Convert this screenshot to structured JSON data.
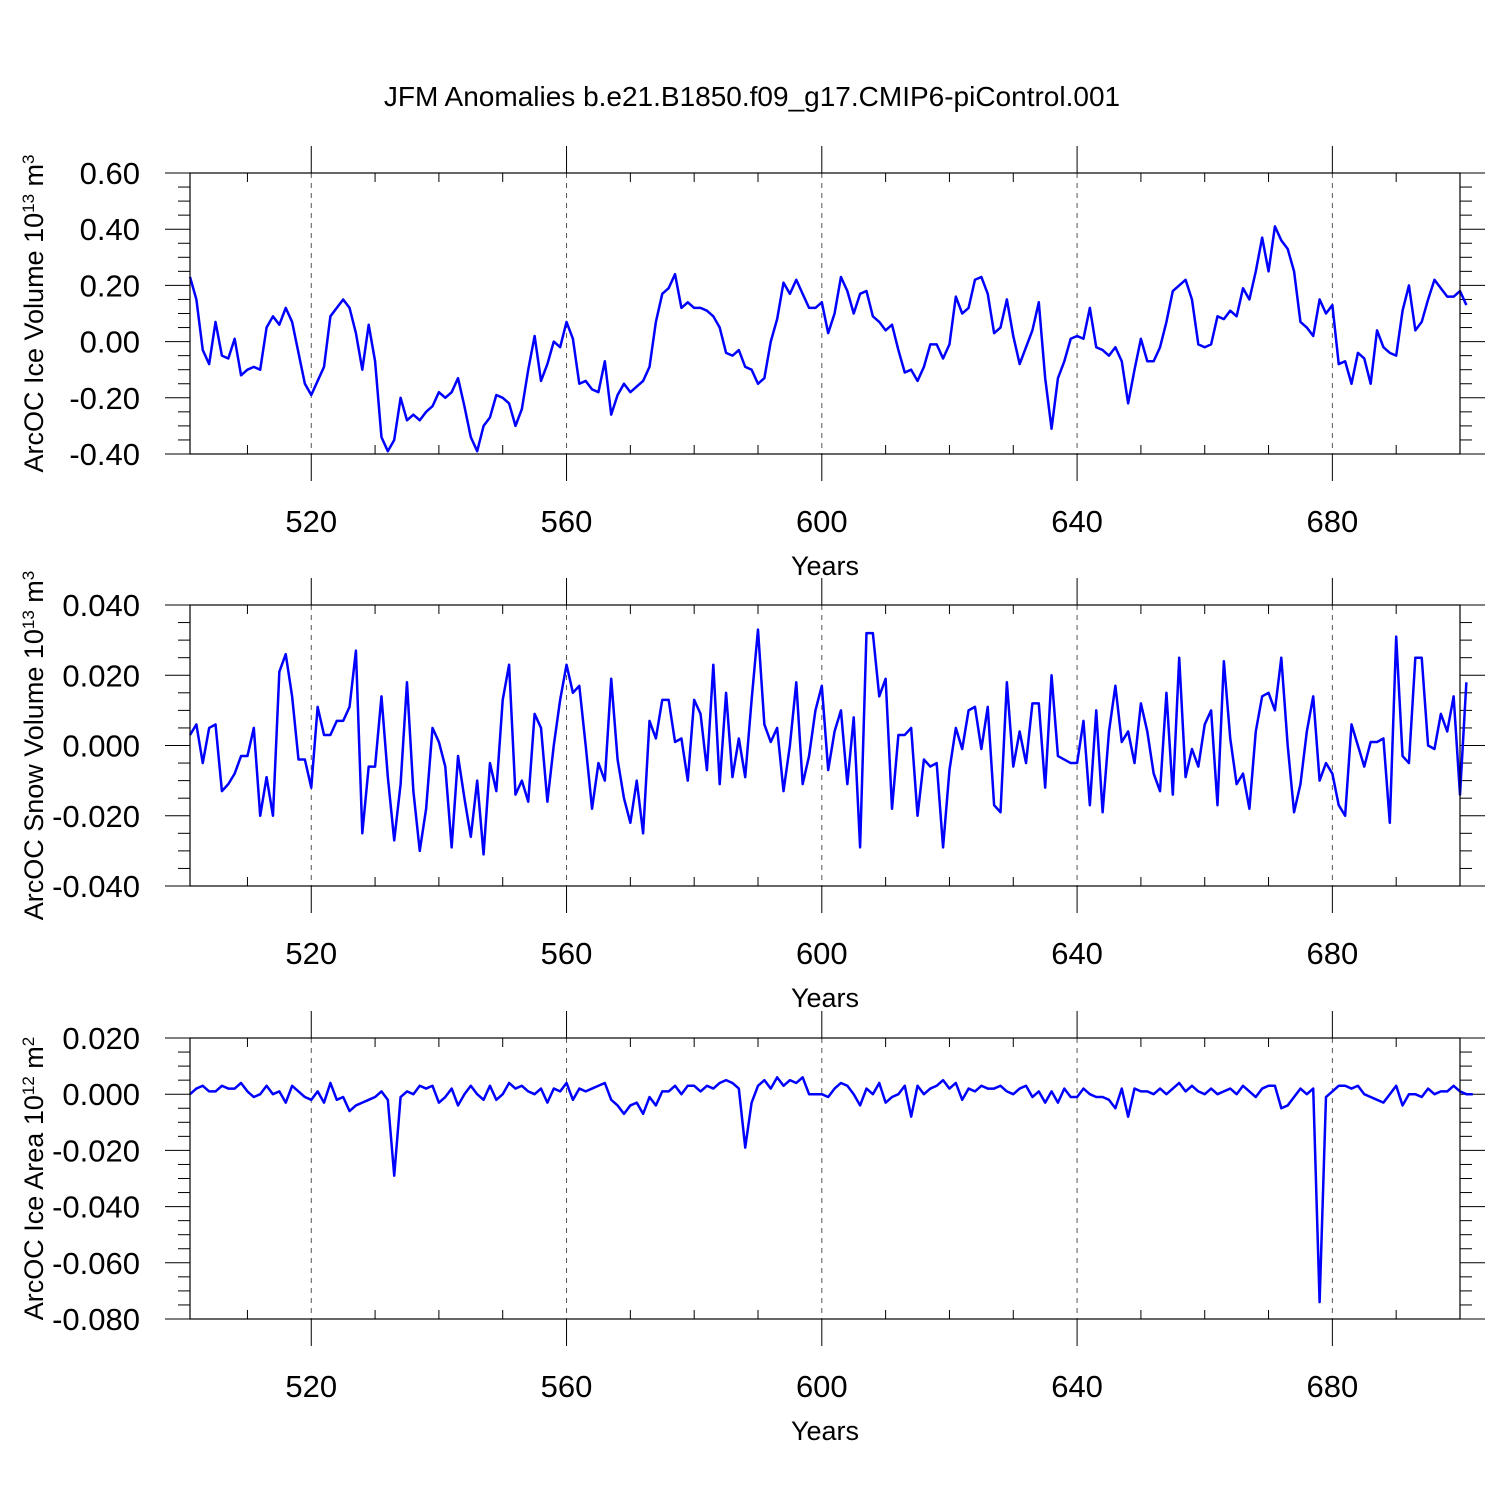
{
  "title": "JFM Anomalies b.e21.B1850.f09_g17.CMIP6-piControl.001",
  "line_color": "#0000ff",
  "chart_data": [
    {
      "type": "line",
      "ylabel_main": "ArcOC Ice Volume 10",
      "ylabel_exp": "13",
      "ylabel_unit": " m",
      "ylabel_unit_exp": "3",
      "xlabel": "Years",
      "xlim": [
        501,
        700
      ],
      "ylim": [
        -0.4,
        0.6
      ],
      "yticks": [
        -0.4,
        -0.2,
        0.0,
        0.2,
        0.4,
        0.6
      ],
      "ytick_labels": [
        "-0.40",
        "-0.20",
        "0.00",
        "0.20",
        "0.40",
        "0.60"
      ],
      "ytick_minor_step": 0.05,
      "xticks": [
        520,
        560,
        600,
        640,
        680
      ],
      "xtick_labels": [
        "520",
        "560",
        "600",
        "640",
        "680"
      ],
      "xtick_minor_step": 10,
      "grid": "vertical dashed at major x ticks",
      "x_start": 501,
      "x_step": 1,
      "values": [
        0.23,
        0.15,
        -0.03,
        -0.08,
        0.07,
        -0.05,
        -0.06,
        0.01,
        -0.12,
        -0.1,
        -0.09,
        -0.1,
        0.05,
        0.09,
        0.06,
        0.12,
        0.07,
        -0.04,
        -0.15,
        -0.19,
        -0.14,
        -0.09,
        0.09,
        0.12,
        0.15,
        0.12,
        0.03,
        -0.1,
        0.06,
        -0.07,
        -0.34,
        -0.39,
        -0.35,
        -0.2,
        -0.28,
        -0.26,
        -0.28,
        -0.25,
        -0.23,
        -0.18,
        -0.2,
        -0.18,
        -0.13,
        -0.23,
        -0.34,
        -0.39,
        -0.3,
        -0.27,
        -0.19,
        -0.2,
        -0.22,
        -0.3,
        -0.24,
        -0.1,
        0.02,
        -0.14,
        -0.08,
        0.0,
        -0.02,
        0.07,
        0.01,
        -0.15,
        -0.14,
        -0.17,
        -0.18,
        -0.07,
        -0.26,
        -0.19,
        -0.15,
        -0.18,
        -0.16,
        -0.14,
        -0.09,
        0.07,
        0.17,
        0.19,
        0.24,
        0.12,
        0.14,
        0.12,
        0.12,
        0.11,
        0.09,
        0.05,
        -0.04,
        -0.05,
        -0.03,
        -0.09,
        -0.1,
        -0.15,
        -0.13,
        0.0,
        0.08,
        0.21,
        0.17,
        0.22,
        0.17,
        0.12,
        0.12,
        0.14,
        0.03,
        0.1,
        0.23,
        0.18,
        0.1,
        0.17,
        0.18,
        0.09,
        0.07,
        0.04,
        0.06,
        -0.03,
        -0.11,
        -0.1,
        -0.14,
        -0.09,
        -0.01,
        -0.01,
        -0.06,
        -0.01,
        0.16,
        0.1,
        0.12,
        0.22,
        0.23,
        0.17,
        0.03,
        0.05,
        0.15,
        0.02,
        -0.08,
        -0.02,
        0.04,
        0.14,
        -0.13,
        -0.31,
        -0.13,
        -0.07,
        0.01,
        0.02,
        0.01,
        0.12,
        -0.02,
        -0.03,
        -0.05,
        -0.02,
        -0.07,
        -0.22,
        -0.1,
        0.01,
        -0.07,
        -0.07,
        -0.02,
        0.07,
        0.18,
        0.2,
        0.22,
        0.15,
        -0.01,
        -0.02,
        -0.01,
        0.09,
        0.08,
        0.11,
        0.09,
        0.19,
        0.15,
        0.25,
        0.37,
        0.25,
        0.41,
        0.36,
        0.33,
        0.25,
        0.07,
        0.05,
        0.02,
        0.15,
        0.1,
        0.13,
        -0.08,
        -0.07,
        -0.15,
        -0.04,
        -0.06,
        -0.15,
        0.04,
        -0.02,
        -0.04,
        -0.05,
        0.11,
        0.2,
        0.04,
        0.07,
        0.15,
        0.22,
        0.19,
        0.16,
        0.16,
        0.18,
        0.13
      ]
    },
    {
      "type": "line",
      "ylabel_main": "ArcOC Snow Volume 10",
      "ylabel_exp": "13",
      "ylabel_unit": " m",
      "ylabel_unit_exp": "3",
      "xlabel": "Years",
      "xlim": [
        501,
        700
      ],
      "ylim": [
        -0.04,
        0.04
      ],
      "yticks": [
        -0.04,
        -0.02,
        0.0,
        0.02,
        0.04
      ],
      "ytick_labels": [
        "-0.040",
        "-0.020",
        "0.000",
        "0.020",
        "0.040"
      ],
      "ytick_minor_step": 0.005,
      "xticks": [
        520,
        560,
        600,
        640,
        680
      ],
      "xtick_labels": [
        "520",
        "560",
        "600",
        "640",
        "680"
      ],
      "xtick_minor_step": 10,
      "grid": "vertical dashed at major x ticks",
      "x_start": 501,
      "x_step": 1,
      "values": [
        0.003,
        0.006,
        -0.005,
        0.005,
        0.006,
        -0.013,
        -0.011,
        -0.008,
        -0.003,
        -0.003,
        0.005,
        -0.02,
        -0.009,
        -0.02,
        0.021,
        0.026,
        0.014,
        -0.004,
        -0.004,
        -0.012,
        0.011,
        0.003,
        0.003,
        0.007,
        0.007,
        0.011,
        0.027,
        -0.025,
        -0.006,
        -0.006,
        0.014,
        -0.009,
        -0.027,
        -0.011,
        0.018,
        -0.013,
        -0.03,
        -0.018,
        0.005,
        0.001,
        -0.006,
        -0.029,
        -0.003,
        -0.015,
        -0.026,
        -0.01,
        -0.031,
        -0.005,
        -0.013,
        0.013,
        0.023,
        -0.014,
        -0.01,
        -0.016,
        0.009,
        0.005,
        -0.016,
        0.0,
        0.013,
        0.023,
        0.015,
        0.017,
        0.0,
        -0.018,
        -0.005,
        -0.01,
        0.019,
        -0.004,
        -0.015,
        -0.022,
        -0.01,
        -0.025,
        0.007,
        0.002,
        0.013,
        0.013,
        0.001,
        0.002,
        -0.01,
        0.013,
        0.009,
        -0.007,
        0.023,
        -0.011,
        0.015,
        -0.009,
        0.002,
        -0.009,
        0.013,
        0.033,
        0.006,
        0.001,
        0.005,
        -0.013,
        0.0,
        0.018,
        -0.011,
        -0.003,
        0.01,
        0.017,
        -0.007,
        0.004,
        0.01,
        -0.011,
        0.008,
        -0.029,
        0.032,
        0.032,
        0.014,
        0.019,
        -0.018,
        0.003,
        0.003,
        0.005,
        -0.02,
        -0.004,
        -0.006,
        -0.005,
        -0.029,
        -0.007,
        0.005,
        -0.001,
        0.01,
        0.011,
        -0.001,
        0.011,
        -0.017,
        -0.019,
        0.018,
        -0.006,
        0.004,
        -0.005,
        0.012,
        0.012,
        -0.012,
        0.02,
        -0.003,
        -0.004,
        -0.005,
        -0.005,
        0.007,
        -0.017,
        0.01,
        -0.019,
        0.004,
        0.017,
        0.001,
        0.004,
        -0.005,
        0.012,
        0.004,
        -0.008,
        -0.013,
        0.015,
        -0.014,
        0.025,
        -0.009,
        -0.001,
        -0.006,
        0.006,
        0.01,
        -0.017,
        0.024,
        0.002,
        -0.011,
        -0.008,
        -0.018,
        0.004,
        0.014,
        0.015,
        0.01,
        0.025,
        0.0,
        -0.019,
        -0.011,
        0.004,
        0.014,
        -0.01,
        -0.005,
        -0.008,
        -0.017,
        -0.02,
        0.006,
        0.0,
        -0.006,
        0.001,
        0.001,
        0.002,
        -0.022,
        0.031,
        -0.003,
        -0.005,
        0.025,
        0.025,
        0.0,
        -0.001,
        0.009,
        0.004,
        0.014,
        -0.014,
        0.018
      ]
    },
    {
      "type": "line",
      "ylabel_main": "ArcOC Ice Area 10",
      "ylabel_exp": "12",
      "ylabel_unit": " m",
      "ylabel_unit_exp": "2",
      "xlabel": "Years",
      "xlim": [
        501,
        700
      ],
      "ylim": [
        -0.08,
        0.02
      ],
      "yticks": [
        -0.08,
        -0.06,
        -0.04,
        -0.02,
        0.0,
        0.02
      ],
      "ytick_labels": [
        "-0.080",
        "-0.060",
        "-0.040",
        "-0.020",
        "0.000",
        "0.020"
      ],
      "ytick_minor_step": 0.005,
      "xticks": [
        520,
        560,
        600,
        640,
        680
      ],
      "xtick_labels": [
        "520",
        "560",
        "600",
        "640",
        "680"
      ],
      "xtick_minor_step": 10,
      "grid": "vertical dashed at major x ticks",
      "x_start": 501,
      "x_step": 1,
      "values": [
        0.0,
        0.002,
        0.003,
        0.001,
        0.001,
        0.003,
        0.002,
        0.002,
        0.004,
        0.001,
        -0.001,
        0.0,
        0.003,
        0.0,
        0.001,
        -0.003,
        0.003,
        0.001,
        -0.001,
        -0.002,
        0.001,
        -0.003,
        0.004,
        -0.002,
        -0.001,
        -0.006,
        -0.004,
        -0.003,
        -0.002,
        -0.001,
        0.001,
        -0.002,
        -0.029,
        -0.001,
        0.001,
        0.0,
        0.003,
        0.002,
        0.003,
        -0.003,
        -0.001,
        0.002,
        -0.004,
        0.0,
        0.003,
        0.0,
        -0.002,
        0.003,
        -0.002,
        0.0,
        0.004,
        0.002,
        0.003,
        0.001,
        0.0,
        0.002,
        -0.003,
        0.002,
        0.001,
        0.004,
        -0.002,
        0.002,
        0.001,
        0.002,
        0.003,
        0.004,
        -0.002,
        -0.004,
        -0.007,
        -0.004,
        -0.003,
        -0.007,
        -0.001,
        -0.004,
        0.001,
        0.001,
        0.003,
        0.0,
        0.003,
        0.003,
        0.001,
        0.003,
        0.002,
        0.004,
        0.005,
        0.004,
        0.002,
        -0.019,
        -0.003,
        0.003,
        0.005,
        0.002,
        0.006,
        0.003,
        0.005,
        0.004,
        0.006,
        0.0,
        0.0,
        0.0,
        -0.001,
        0.002,
        0.004,
        0.003,
        0.0,
        -0.004,
        0.002,
        0.0,
        0.004,
        -0.003,
        -0.001,
        0.0,
        0.003,
        -0.008,
        0.003,
        0.0,
        0.002,
        0.003,
        0.005,
        0.002,
        0.004,
        -0.002,
        0.002,
        0.001,
        0.003,
        0.002,
        0.002,
        0.003,
        0.001,
        0.0,
        0.002,
        0.003,
        -0.001,
        0.001,
        -0.003,
        0.001,
        -0.003,
        0.002,
        -0.001,
        -0.001,
        0.002,
        0.0,
        -0.001,
        -0.001,
        -0.002,
        -0.005,
        0.002,
        -0.008,
        0.002,
        0.001,
        0.001,
        0.0,
        0.002,
        0.0,
        0.002,
        0.004,
        0.001,
        0.003,
        0.001,
        0.0,
        0.002,
        0.0,
        0.001,
        0.002,
        0.0,
        0.003,
        0.001,
        -0.001,
        0.002,
        0.003,
        0.003,
        -0.005,
        -0.004,
        -0.001,
        0.002,
        0.0,
        0.002,
        -0.074,
        -0.001,
        0.001,
        0.003,
        0.003,
        0.002,
        0.003,
        0.0,
        -0.001,
        -0.002,
        -0.003,
        0.0,
        0.003,
        -0.004,
        0.0,
        0.0,
        -0.001,
        0.002,
        0.0,
        0.001,
        0.001,
        0.003,
        0.001,
        0.0,
        0.0
      ]
    }
  ]
}
